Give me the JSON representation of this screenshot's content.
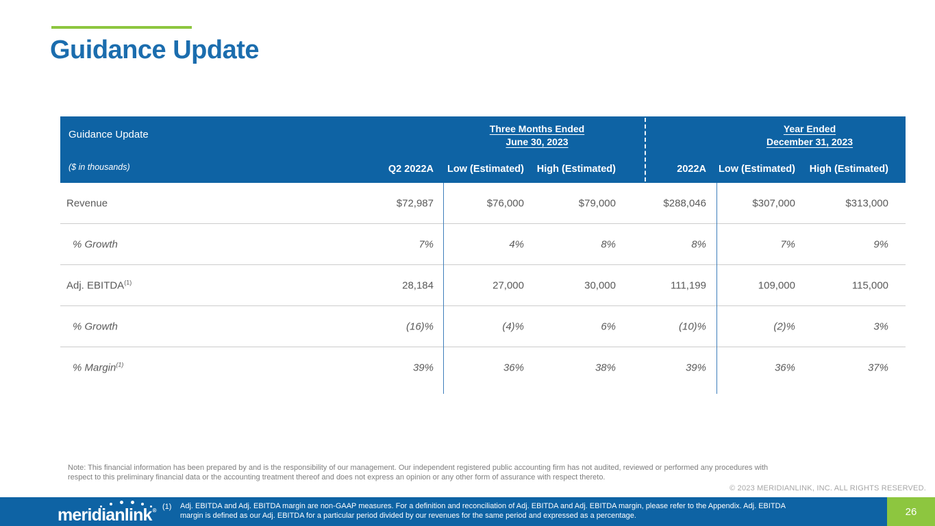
{
  "slide": {
    "title": "Guidance Update",
    "page_number": "26",
    "copyright": "© 2023 MERIDIANLINK, INC. ALL RIGHTS RESERVED.",
    "note_line1": "Note: This financial information has been prepared by and is the responsibility of our management. Our independent registered public accounting firm has not audited, reviewed or performed any procedures with",
    "note_line2": "respect to this preliminary financial data or the accounting treatment thereof and does not express an opinion or any other form of assurance with respect thereto."
  },
  "logo": {
    "text": "meridianlink",
    "registered": "®"
  },
  "footnote": {
    "marker": "(1)",
    "line1": "Adj. EBITDA and Adj. EBITDA margin are non-GAAP measures. For a definition and reconciliation of Adj. EBITDA and Adj. EBITDA margin, please refer to the Appendix. Adj. EBITDA",
    "line2": "margin is defined as our Adj. EBITDA for a particular period divided by our revenues for the same period and expressed as a percentage."
  },
  "table": {
    "title": "Guidance Update",
    "units_label": "($ in thousands)",
    "group1": {
      "line1": "Three Months Ended",
      "line2": "June 30, 2023"
    },
    "group2": {
      "line1": "Year Ended",
      "line2": "December 31, 2023"
    },
    "columns": [
      "Q2 2022A",
      "Low (Estimated)",
      "High (Estimated)",
      "2022A",
      "Low (Estimated)",
      "High (Estimated)"
    ],
    "rows": [
      {
        "label": "Revenue",
        "sup": "",
        "values": [
          "$72,987",
          "$76,000",
          "$79,000",
          "$288,046",
          "$307,000",
          "$313,000"
        ]
      },
      {
        "label": "% Growth",
        "sup": "",
        "values": [
          "7%",
          "4%",
          "8%",
          "8%",
          "7%",
          "9%"
        ]
      },
      {
        "label": "Adj. EBITDA",
        "sup": "(1)",
        "values": [
          "28,184",
          "27,000",
          "30,000",
          "111,199",
          "109,000",
          "115,000"
        ]
      },
      {
        "label": "% Growth",
        "sup": "",
        "values": [
          "(16)%",
          "(4)%",
          "6%",
          "(10)%",
          "(2)%",
          "3%"
        ]
      },
      {
        "label": "% Margin",
        "sup": "(1)",
        "values": [
          "39%",
          "36%",
          "38%",
          "39%",
          "36%",
          "37%"
        ]
      }
    ]
  },
  "colors": {
    "bar_blue": "#0e63a4",
    "accent_green": "#8dc63f",
    "title_blue": "#1b6dae",
    "divider_blue": "#3d7ebb",
    "body_text": "#5a5a5a"
  }
}
